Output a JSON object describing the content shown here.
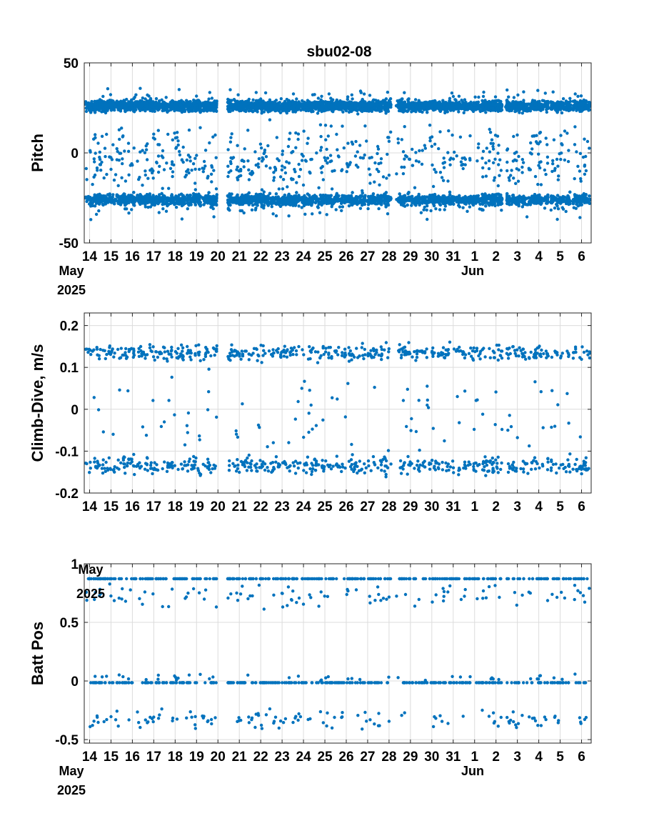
{
  "chart_data": {
    "title": "sbu02-08",
    "x_labels": [
      "14",
      "15",
      "16",
      "17",
      "18",
      "19",
      "20",
      "21",
      "22",
      "23",
      "24",
      "25",
      "26",
      "27",
      "28",
      "29",
      "30",
      "31",
      "1",
      "2",
      "3",
      "4",
      "5",
      "6"
    ],
    "x_days": [
      14,
      15,
      16,
      17,
      18,
      19,
      20,
      21,
      22,
      23,
      24,
      25,
      26,
      27,
      28,
      29,
      30,
      31,
      32,
      33,
      34,
      35,
      36,
      37
    ],
    "xlim": [
      13.75,
      37.45
    ],
    "subtick_may": "May",
    "subtick_year": "2025",
    "subtick_jun": "Jun",
    "marker_color": "#0072BD",
    "gaps": [
      [
        19.95,
        20.45
      ],
      [
        28.1,
        28.3
      ],
      [
        33.3,
        33.45
      ],
      [
        35.45,
        35.55
      ],
      [
        36.5,
        36.6
      ]
    ],
    "panels": [
      {
        "type": "scatter",
        "ylabel": "Pitch",
        "ylim": [
          -50,
          50
        ],
        "yticks": [
          -50,
          0,
          50
        ],
        "ytick_labels": [
          "-50",
          "0",
          "50"
        ],
        "show_date_sublabels": true,
        "bands": [
          {
            "center": 26,
            "spread": 3,
            "density": 160
          },
          {
            "center": -26,
            "spread": 3,
            "density": 160
          },
          {
            "center": 30,
            "spread": 6,
            "density": 6
          },
          {
            "center": -30,
            "spread": 6,
            "density": 6
          },
          {
            "center": -3,
            "spread": 8,
            "density": 10
          },
          {
            "center": -12,
            "spread": 9,
            "density": 8
          },
          {
            "center": 8,
            "spread": 9,
            "density": 6
          }
        ]
      },
      {
        "type": "scatter",
        "ylabel": "Climb-Dive, m/s",
        "ylim": [
          -0.2,
          0.23
        ],
        "yticks": [
          -0.2,
          -0.1,
          0,
          0.1,
          0.2
        ],
        "ytick_labels": [
          "-0.2",
          "-0.1",
          "0",
          "0.1",
          "0.2"
        ],
        "show_date_sublabels": false,
        "bands": [
          {
            "center": 0.135,
            "spread": 0.018,
            "density": 22
          },
          {
            "center": -0.135,
            "spread": 0.02,
            "density": 22
          },
          {
            "center": 0.03,
            "spread": 0.05,
            "density": 2
          },
          {
            "center": -0.05,
            "spread": 0.05,
            "density": 2
          }
        ]
      },
      {
        "type": "scatter",
        "ylabel": "Batt Pos",
        "ylim": [
          -0.53,
          1.0
        ],
        "yticks": [
          -0.5,
          0,
          0.5,
          1
        ],
        "ytick_labels": [
          "-0.5",
          "0",
          "0.5",
          "1"
        ],
        "show_date_sublabels": true,
        "bands": [
          {
            "center": 0.872,
            "spread": 0.0,
            "density": 14
          },
          {
            "center": -0.015,
            "spread": 0.0,
            "density": 14
          },
          {
            "center": 0.72,
            "spread": 0.1,
            "density": 5
          },
          {
            "center": -0.33,
            "spread": 0.08,
            "density": 6
          },
          {
            "center": 0.03,
            "spread": 0.04,
            "density": 2
          }
        ]
      }
    ]
  }
}
